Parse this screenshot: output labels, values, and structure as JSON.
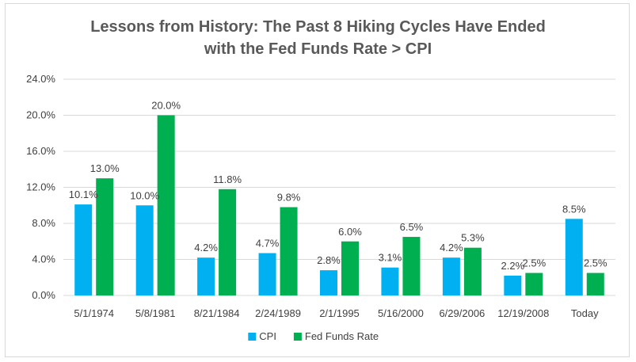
{
  "chart_data": {
    "type": "bar",
    "title_lines": [
      "Lessons from History: The Past 8 Hiking Cycles Have Ended",
      "with the Fed Funds Rate > CPI"
    ],
    "categories": [
      "5/1/1974",
      "5/8/1981",
      "8/21/1984",
      "2/24/1989",
      "2/1/1995",
      "5/16/2000",
      "6/29/2006",
      "12/19/2008",
      "Today"
    ],
    "series": [
      {
        "name": "CPI",
        "color": "#00b0f0",
        "values": [
          10.1,
          10.0,
          4.2,
          4.7,
          2.8,
          3.1,
          4.2,
          2.2,
          8.5
        ],
        "labels": [
          "10.1%",
          "10.0%",
          "4.2%",
          "4.7%",
          "2.8%",
          "3.1%",
          "4.2%",
          "2.2%",
          "8.5%"
        ]
      },
      {
        "name": "Fed Funds Rate",
        "color": "#00b050",
        "values": [
          13.0,
          20.0,
          11.8,
          9.8,
          6.0,
          6.5,
          5.3,
          2.5,
          2.5
        ],
        "labels": [
          "13.0%",
          "20.0%",
          "11.8%",
          "9.8%",
          "6.0%",
          "6.5%",
          "5.3%",
          "2.5%",
          "2.5%"
        ]
      }
    ],
    "ylim": [
      0,
      24
    ],
    "yticks": [
      0,
      4,
      8,
      12,
      16,
      20,
      24
    ],
    "ytick_labels": [
      "0.0%",
      "4.0%",
      "8.0%",
      "12.0%",
      "16.0%",
      "20.0%",
      "24.0%"
    ],
    "grid": true,
    "gridline_color": "#d9d9d9",
    "legend_position": "bottom",
    "xlabel": "",
    "ylabel": ""
  }
}
